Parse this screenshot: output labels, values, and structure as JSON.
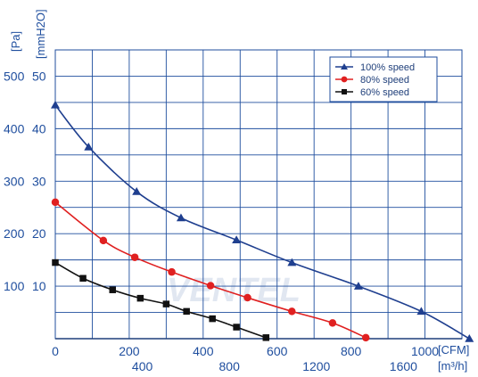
{
  "chart_data": {
    "type": "line",
    "title": "",
    "x_axis_primary": {
      "unit": "[CFM]",
      "range": [
        0,
        1100
      ],
      "ticks": [
        0,
        200,
        400,
        600,
        800,
        1000
      ],
      "tick_labels": [
        "0",
        "200",
        "400",
        "600",
        "800",
        "1000"
      ]
    },
    "x_axis_secondary": {
      "unit": "[m³/h]",
      "ticks": [
        400,
        800,
        1200,
        1600
      ],
      "tick_labels": [
        "400",
        "800",
        "1200",
        "1600"
      ]
    },
    "y_axis_primary": {
      "unit": "[Pa]",
      "range": [
        0,
        550
      ],
      "ticks": [
        100,
        200,
        300,
        400,
        500
      ],
      "tick_labels": [
        "100",
        "200",
        "300",
        "400",
        "500"
      ]
    },
    "y_axis_secondary": {
      "unit": "[mmH2O]",
      "tick_labels": [
        "10",
        "20",
        "30",
        "40",
        "50"
      ]
    },
    "grid": true,
    "legend_position": "top-right",
    "series": [
      {
        "name": "100%  speed",
        "color": "#1f3f8f",
        "marker": "triangle",
        "x": [
          0,
          90,
          220,
          340,
          490,
          640,
          820,
          990,
          1120
        ],
        "y": [
          445,
          365,
          280,
          230,
          188,
          145,
          100,
          52,
          0
        ]
      },
      {
        "name": "80%  speed",
        "color": "#e02020",
        "marker": "circle",
        "x": [
          0,
          130,
          215,
          315,
          420,
          520,
          640,
          750,
          840
        ],
        "y": [
          260,
          187,
          155,
          127,
          101,
          78,
          52,
          30,
          2
        ]
      },
      {
        "name": "60%  speed",
        "color": "#111111",
        "marker": "square",
        "x": [
          0,
          75,
          155,
          230,
          300,
          355,
          425,
          490,
          570
        ],
        "y": [
          145,
          115,
          93,
          77,
          66,
          52,
          38,
          22,
          2
        ]
      }
    ],
    "watermark": "VENTEL"
  }
}
